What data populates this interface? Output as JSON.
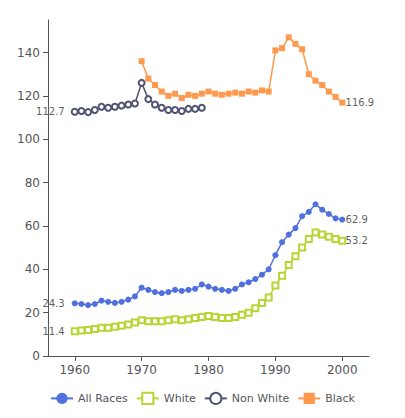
{
  "chart_data": {
    "type": "line",
    "xlim": [
      1956,
      2004
    ],
    "ylim": [
      0,
      155
    ],
    "xticks": [
      1960,
      1970,
      1980,
      1990,
      2000
    ],
    "yticks": [
      0,
      20,
      40,
      60,
      80,
      100,
      120,
      140
    ],
    "grid": false,
    "legend": "bottom",
    "series": [
      {
        "name": "All Races",
        "marker": "circle",
        "line_style": "solid",
        "x": [
          1960,
          1961,
          1962,
          1963,
          1964,
          1965,
          1966,
          1967,
          1968,
          1969,
          1970,
          1971,
          1972,
          1973,
          1974,
          1975,
          1976,
          1977,
          1978,
          1979,
          1980,
          1981,
          1982,
          1983,
          1984,
          1985,
          1986,
          1987,
          1988,
          1989,
          1990,
          1991,
          1992,
          1993,
          1994,
          1995,
          1996,
          1997,
          1998,
          1999,
          2000
        ],
        "values": [
          24.3,
          24.0,
          23.5,
          24.0,
          25.5,
          25.0,
          24.5,
          25.0,
          26.0,
          27.5,
          31.5,
          30.5,
          29.5,
          29.0,
          29.5,
          30.5,
          30.0,
          30.5,
          31.0,
          33.0,
          32.0,
          31.0,
          30.5,
          30.0,
          31.0,
          33.0,
          34.0,
          35.5,
          37.5,
          40.0,
          46.5,
          52.5,
          56.0,
          59.0,
          64.5,
          66.5,
          70.0,
          67.5,
          65.5,
          63.5,
          62.9
        ]
      },
      {
        "name": "White",
        "marker": "open_square",
        "line_style": "solid",
        "x": [
          1960,
          1961,
          1962,
          1963,
          1964,
          1965,
          1966,
          1967,
          1968,
          1969,
          1970,
          1971,
          1972,
          1973,
          1974,
          1975,
          1976,
          1977,
          1978,
          1979,
          1980,
          1981,
          1982,
          1983,
          1984,
          1985,
          1986,
          1987,
          1988,
          1989,
          1990,
          1991,
          1992,
          1993,
          1994,
          1995,
          1996,
          1997,
          1998,
          1999,
          2000
        ],
        "values": [
          11.4,
          11.8,
          12.0,
          12.5,
          13.0,
          13.0,
          13.5,
          14.0,
          14.5,
          15.5,
          16.5,
          16.0,
          16.0,
          16.0,
          16.5,
          17.0,
          16.5,
          17.0,
          17.5,
          18.0,
          18.5,
          18.0,
          17.5,
          17.5,
          18.0,
          19.0,
          20.0,
          22.0,
          24.5,
          27.0,
          32.5,
          37.0,
          42.0,
          46.0,
          50.0,
          54.0,
          57.0,
          56.0,
          55.0,
          54.0,
          53.2
        ]
      },
      {
        "name": "Non White",
        "marker": "open_circle",
        "line_style": "solid",
        "x": [
          1960,
          1961,
          1962,
          1963,
          1964,
          1965,
          1966,
          1967,
          1968,
          1969,
          1970,
          1971,
          1972,
          1973,
          1974,
          1975,
          1976,
          1977,
          1978,
          1979
        ],
        "values": [
          112.7,
          113.0,
          112.5,
          113.5,
          115.0,
          114.5,
          115.0,
          115.5,
          116.0,
          116.5,
          126.0,
          118.5,
          116.0,
          114.5,
          113.5,
          113.5,
          113.0,
          114.0,
          114.0,
          114.5
        ]
      },
      {
        "name": "Black",
        "marker": "square",
        "line_style": "solid",
        "x": [
          1970,
          1971,
          1972,
          1973,
          1974,
          1975,
          1976,
          1977,
          1978,
          1979,
          1980,
          1981,
          1982,
          1983,
          1984,
          1985,
          1986,
          1987,
          1988,
          1989,
          1990,
          1991,
          1992,
          1993,
          1994,
          1995,
          1996,
          1997,
          1998,
          1999,
          2000
        ],
        "values": [
          136.0,
          128.0,
          125.0,
          122.0,
          120.0,
          121.0,
          119.0,
          120.5,
          120.0,
          121.0,
          122.0,
          121.0,
          120.5,
          121.0,
          121.5,
          121.0,
          122.0,
          121.5,
          122.5,
          122.0,
          141.0,
          142.0,
          147.0,
          144.0,
          141.5,
          130.0,
          127.0,
          125.0,
          122.0,
          119.5,
          116.9
        ]
      }
    ],
    "annotations": [
      {
        "text": "24.3",
        "x": 1958.5,
        "y": 24.3,
        "align": "right"
      },
      {
        "text": "11.4",
        "x": 1958.5,
        "y": 11.4,
        "align": "right"
      },
      {
        "text": "112.7",
        "x": 1958.5,
        "y": 112.7,
        "align": "right"
      },
      {
        "text": "62.9",
        "x": 2000.5,
        "y": 62.9,
        "align": "left"
      },
      {
        "text": "53.2",
        "x": 2000.5,
        "y": 53.2,
        "align": "left"
      },
      {
        "text": "116.9",
        "x": 2000.5,
        "y": 116.9,
        "align": "left"
      }
    ]
  }
}
